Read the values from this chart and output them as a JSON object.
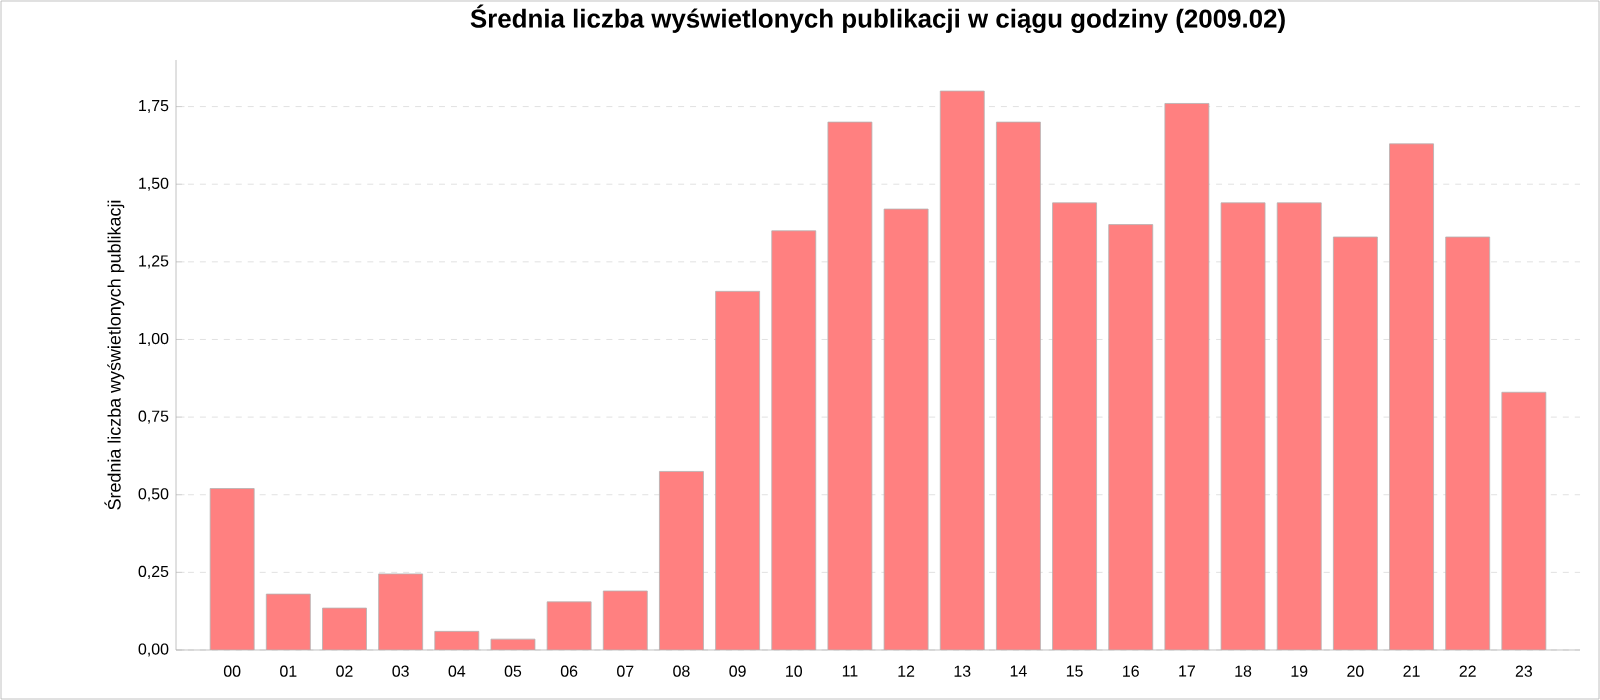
{
  "chart_data": {
    "type": "bar",
    "title": "Średnia liczba wyświetlonych publikacji w ciągu godziny (2009.02)",
    "ylabel": "Średnia liczba wyświetlonych publikacji",
    "categories": [
      "00",
      "01",
      "02",
      "03",
      "04",
      "05",
      "06",
      "07",
      "08",
      "09",
      "10",
      "11",
      "12",
      "13",
      "14",
      "15",
      "16",
      "17",
      "18",
      "19",
      "20",
      "21",
      "22",
      "23"
    ],
    "values": [
      0.52,
      0.18,
      0.135,
      0.245,
      0.06,
      0.035,
      0.155,
      0.19,
      0.575,
      1.155,
      1.35,
      1.7,
      1.42,
      1.8,
      1.7,
      1.44,
      1.37,
      1.76,
      1.44,
      1.44,
      1.33,
      1.63,
      1.33,
      0.83
    ],
    "color": "#ff8080",
    "ylim": [
      0,
      1.9
    ],
    "yticks": [
      {
        "value": 0,
        "label": "0,00"
      },
      {
        "value": 0.25,
        "label": "0,25"
      },
      {
        "value": 0.5,
        "label": "0,50"
      },
      {
        "value": 0.75,
        "label": "0,75"
      },
      {
        "value": 1,
        "label": "1,00"
      },
      {
        "value": 1.25,
        "label": "1,25"
      },
      {
        "value": 1.5,
        "label": "1,50"
      },
      {
        "value": 1.75,
        "label": "1,75"
      }
    ],
    "grid": "y"
  }
}
